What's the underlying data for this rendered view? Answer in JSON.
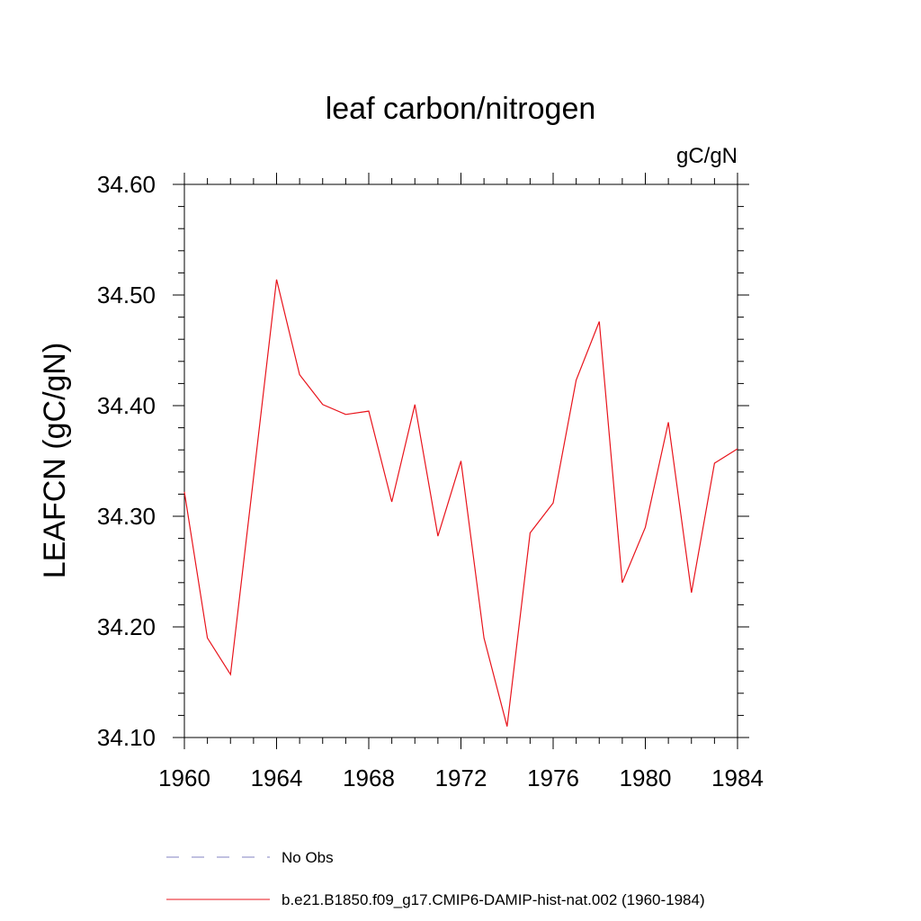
{
  "chart_data": {
    "type": "line",
    "title": "leaf carbon/nitrogen",
    "units_label": "gC/gN",
    "ylabel": "LEAFCN  (gC/gN)",
    "xlabel": "",
    "xlim": [
      1960,
      1984
    ],
    "ylim": [
      34.1,
      34.6
    ],
    "x_ticks": [
      1960,
      1964,
      1968,
      1972,
      1976,
      1980,
      1984
    ],
    "y_ticks": [
      "34.10",
      "34.20",
      "34.30",
      "34.40",
      "34.50",
      "34.60"
    ],
    "grid": false,
    "legend_placement": "bottom",
    "series": [
      {
        "name": "No Obs",
        "color": "#8080c0",
        "dash": true,
        "x": [],
        "values": []
      },
      {
        "name": "b.e21.B1850.f09_g17.CMIP6-DAMIP-hist-nat.002 (1960-1984)",
        "color": "#e8141c",
        "dash": false,
        "x": [
          1960,
          1961,
          1962,
          1963,
          1964,
          1965,
          1966,
          1967,
          1968,
          1969,
          1970,
          1971,
          1972,
          1973,
          1974,
          1975,
          1976,
          1977,
          1978,
          1979,
          1980,
          1981,
          1982,
          1983,
          1984
        ],
        "values": [
          34.322,
          34.19,
          34.157,
          34.335,
          34.514,
          34.428,
          34.401,
          34.392,
          34.395,
          34.313,
          34.401,
          34.282,
          34.35,
          34.19,
          34.11,
          34.285,
          34.312,
          34.423,
          34.476,
          34.24,
          34.29,
          34.385,
          34.231,
          34.348,
          34.361
        ]
      }
    ]
  }
}
